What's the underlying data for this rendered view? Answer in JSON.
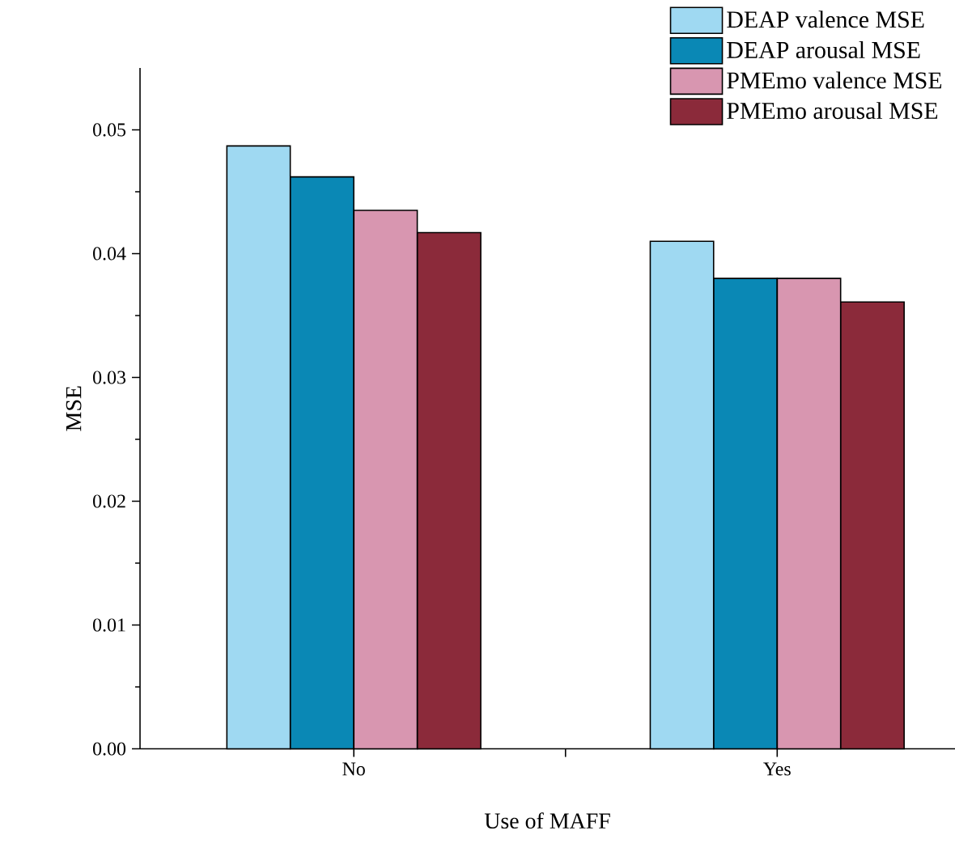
{
  "chart_data": {
    "type": "bar",
    "xlabel": "Use of MAFF",
    "ylabel": "MSE",
    "categories": [
      "No",
      "Yes"
    ],
    "series": [
      {
        "name": "DEAP valence MSE",
        "color": "#9fd9f2",
        "values": [
          0.0487,
          0.041
        ]
      },
      {
        "name": "DEAP arousal MSE",
        "color": "#0a88b5",
        "values": [
          0.0462,
          0.038
        ]
      },
      {
        "name": "PMEmo valence MSE",
        "color": "#d896b0",
        "values": [
          0.0435,
          0.038
        ]
      },
      {
        "name": "PMEmo arousal MSE",
        "color": "#8b2a3a",
        "values": [
          0.0417,
          0.0361
        ]
      }
    ],
    "ylim": [
      0,
      0.055
    ],
    "yticks": [
      {
        "value": 0,
        "label": "0.00"
      },
      {
        "value": 0.01,
        "label": "0.01"
      },
      {
        "value": 0.02,
        "label": "0.02"
      },
      {
        "value": 0.03,
        "label": "0.03"
      },
      {
        "value": 0.04,
        "label": "0.04"
      },
      {
        "value": 0.05,
        "label": "0.05"
      }
    ],
    "grid": false,
    "legend": "top right"
  }
}
